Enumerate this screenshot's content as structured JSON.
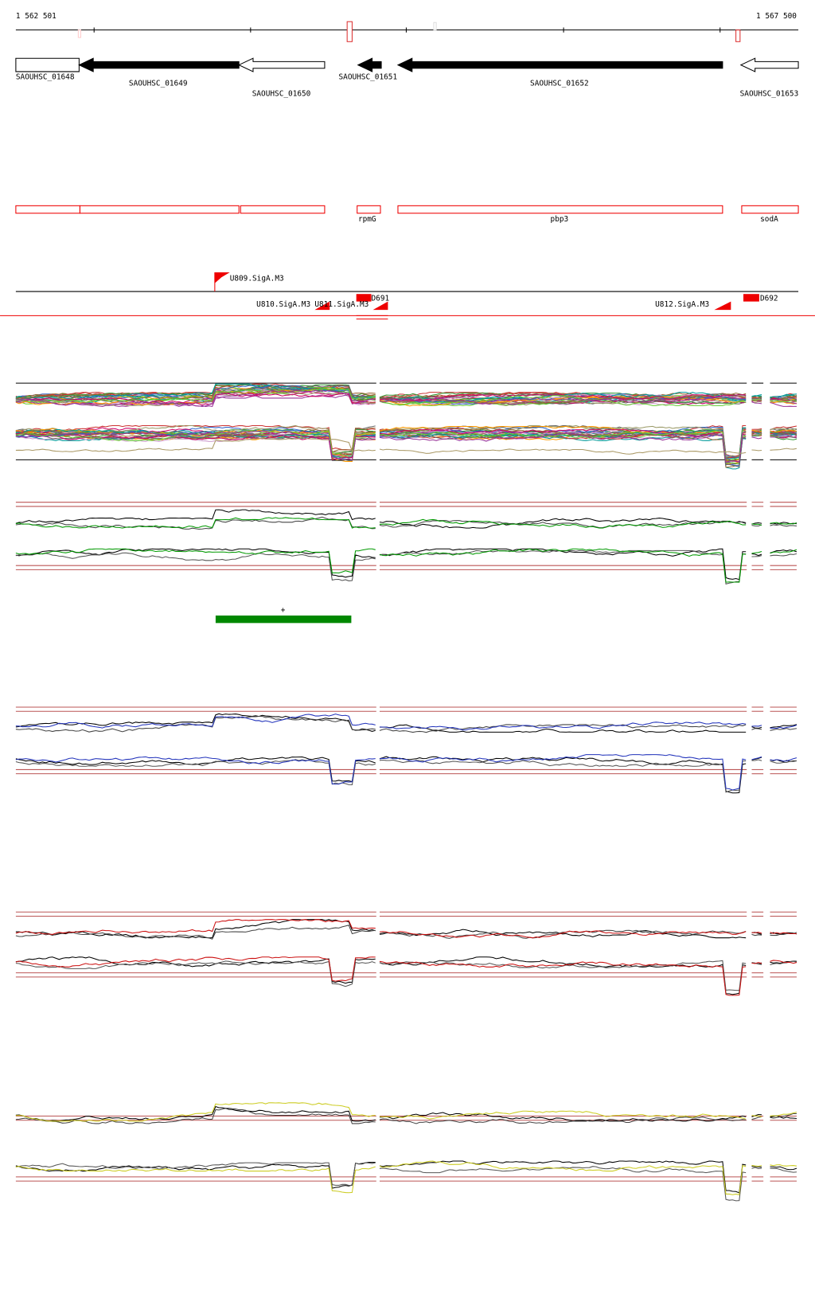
{
  "ruler": {
    "start": "1 562 501",
    "end": "1 567 500"
  },
  "genes": [
    {
      "label": "SAOUHSC_01648"
    },
    {
      "label": "SAOUHSC_01649"
    },
    {
      "label": "SAOUHSC_01650"
    },
    {
      "label": "SAOUHSC_01651"
    },
    {
      "label": "SAOUHSC_01652"
    },
    {
      "label": "SAOUHSC_01653"
    }
  ],
  "features": [
    {
      "label": "rpmG"
    },
    {
      "label": "pbp3"
    },
    {
      "label": "sodA"
    }
  ],
  "promoters": [
    {
      "label": "U809.SigA.M3"
    },
    {
      "label": "U810.SigA.M3"
    },
    {
      "label": "U811.SigA.M3"
    },
    {
      "label": "D691"
    },
    {
      "label": "U812.SigA.M3"
    },
    {
      "label": "D692"
    }
  ],
  "segment": {
    "label": "+"
  }
}
